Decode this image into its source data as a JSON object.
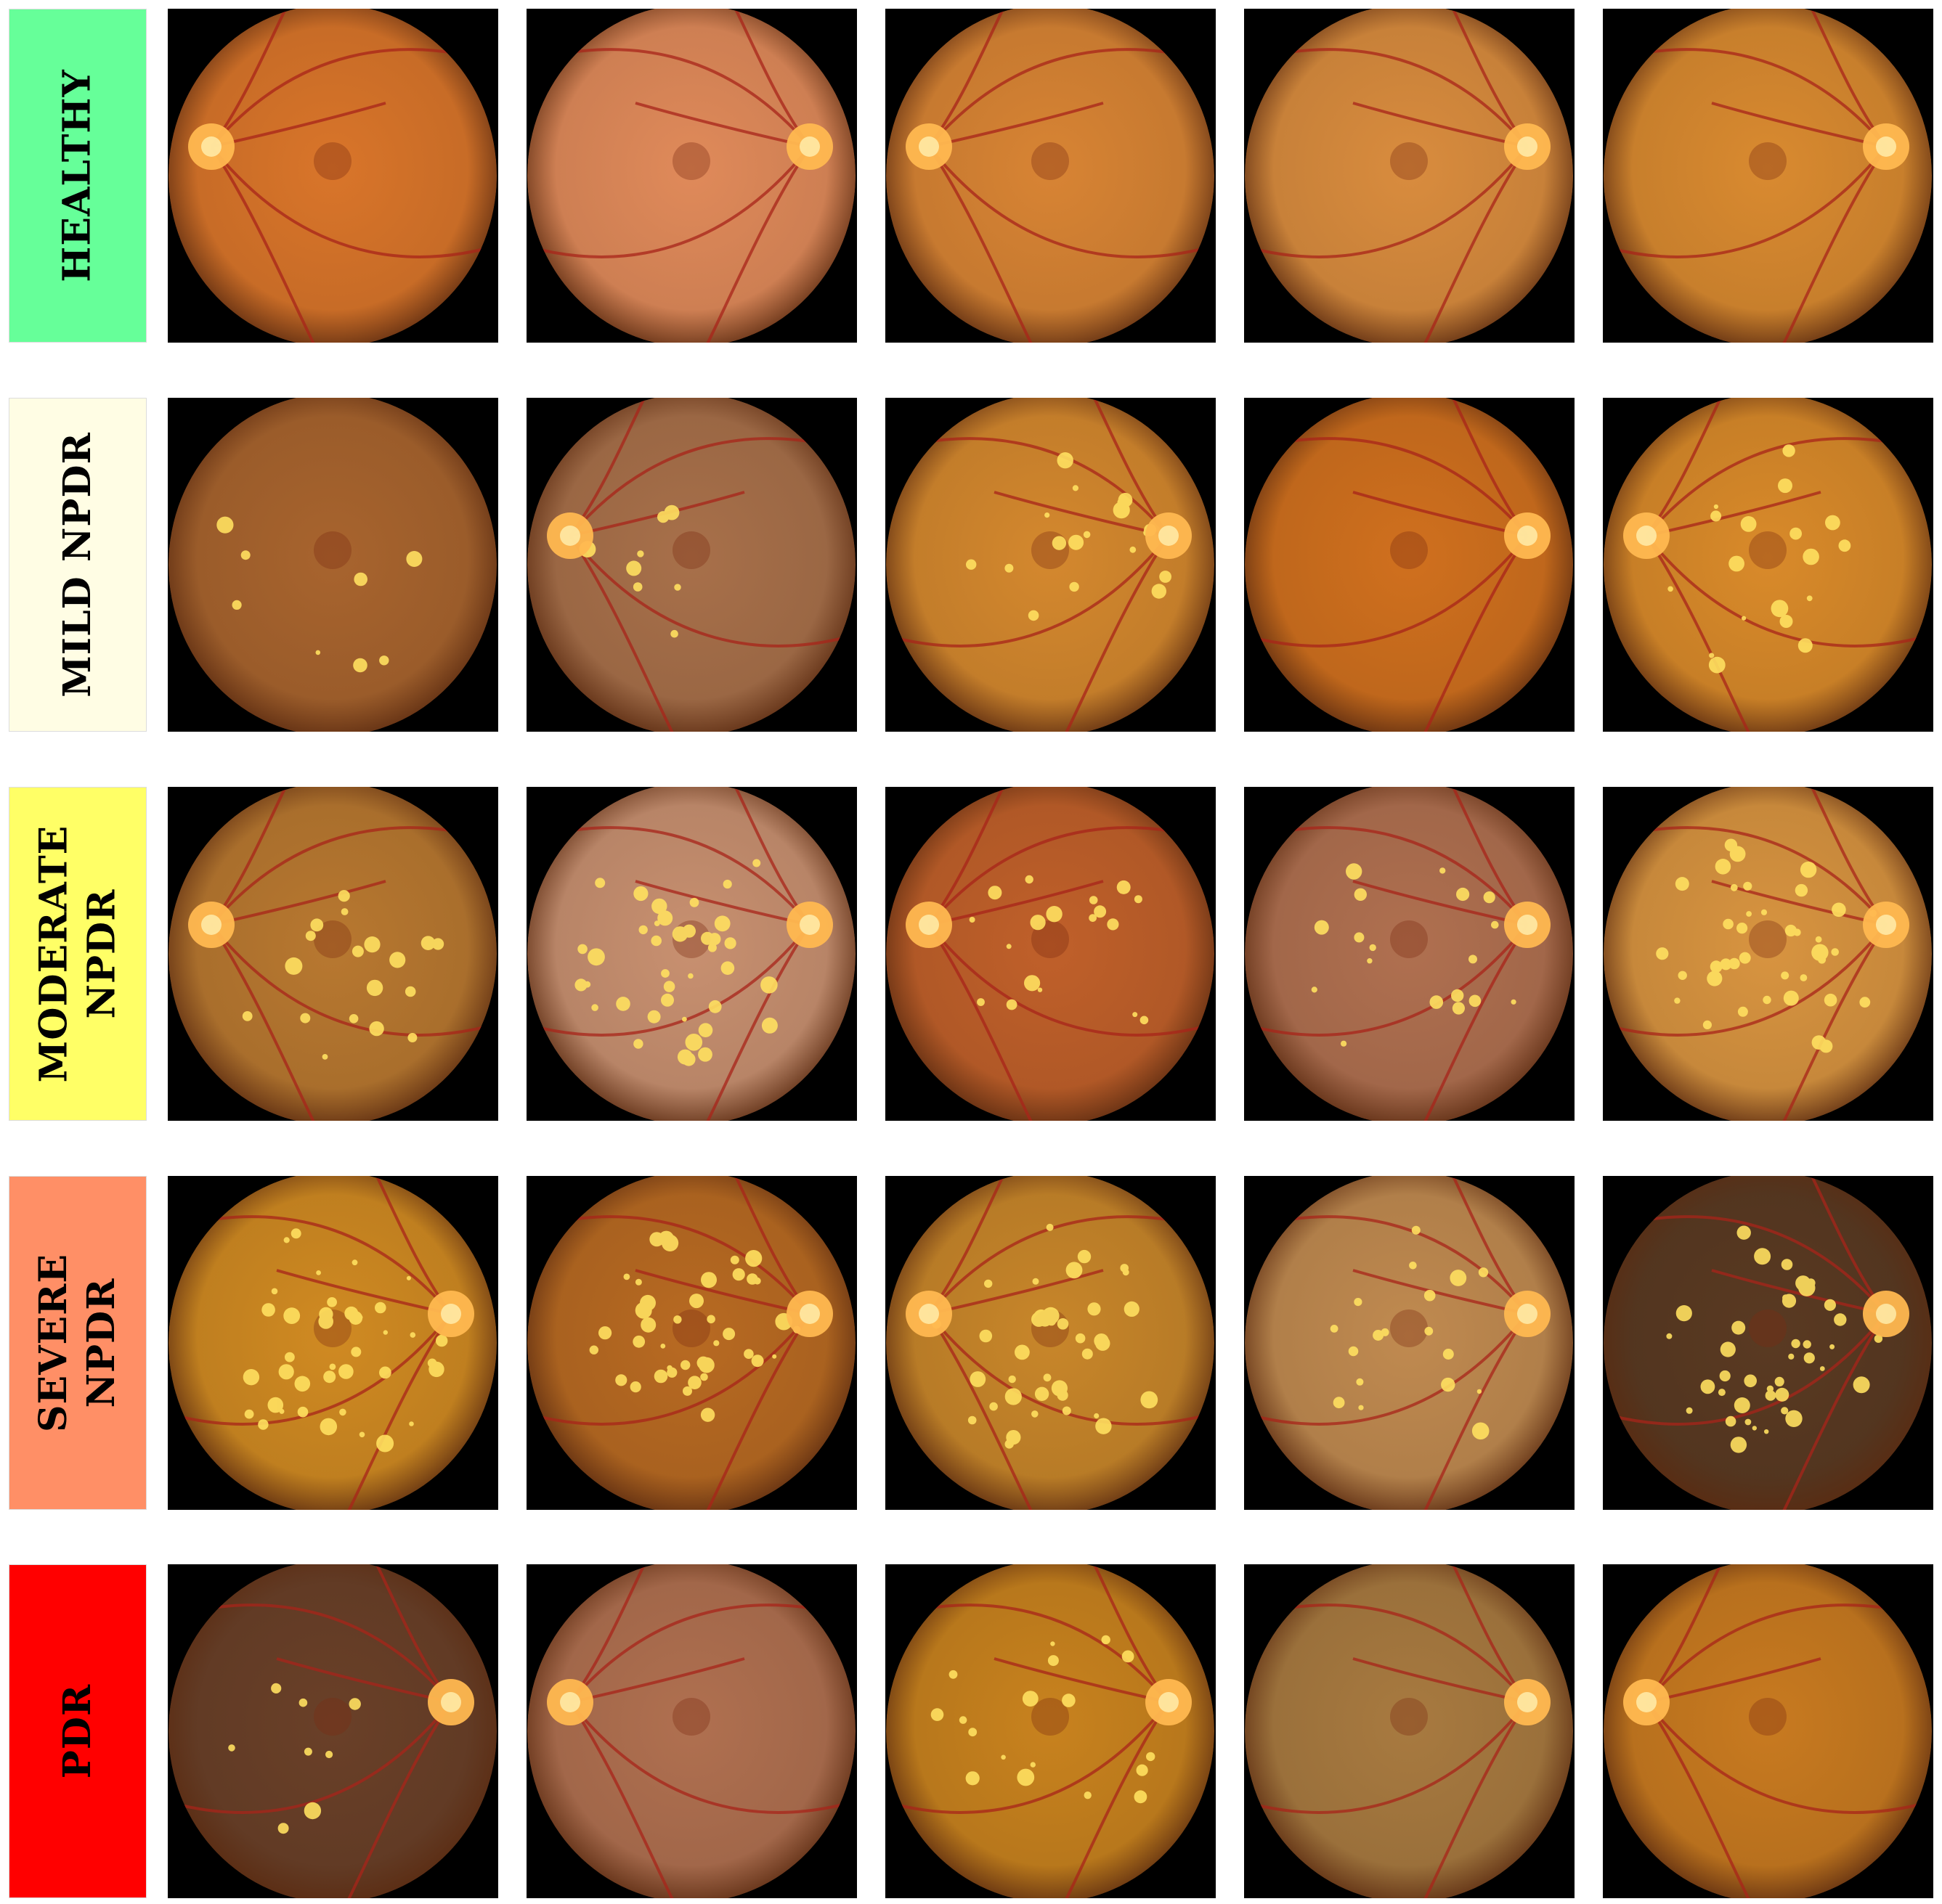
{
  "rows": [
    {
      "label": "HEALTHY",
      "label_color": "#66ff99",
      "images": [
        {
          "tone": "#d9752a",
          "disc": "left"
        },
        {
          "tone": "#e08a5a",
          "disc": "right"
        },
        {
          "tone": "#d88434",
          "disc": "left"
        },
        {
          "tone": "#d98c3e",
          "disc": "right"
        },
        {
          "tone": "#d98a30",
          "disc": "right"
        }
      ]
    },
    {
      "label": "MILD NPDR",
      "label_color": "#fffde4",
      "images": [
        {
          "tone": "#a8642e",
          "disc": "none",
          "lesions": "few"
        },
        {
          "tone": "#a8704a",
          "disc": "left",
          "lesions": "few"
        },
        {
          "tone": "#d4882e",
          "disc": "right",
          "lesions": "some"
        },
        {
          "tone": "#d0701e",
          "disc": "right",
          "lesions": "none"
        },
        {
          "tone": "#d98a2a",
          "disc": "left",
          "lesions": "some"
        }
      ]
    },
    {
      "label": "MODERATE\nNPDR",
      "label_color": "#ffff66",
      "images": [
        {
          "tone": "#b87830",
          "disc": "left",
          "lesions": "some"
        },
        {
          "tone": "#c89070",
          "disc": "right",
          "lesions": "many"
        },
        {
          "tone": "#c0602a",
          "disc": "left",
          "lesions": "some"
        },
        {
          "tone": "#b07050",
          "disc": "right",
          "lesions": "some"
        },
        {
          "tone": "#d89440",
          "disc": "right",
          "lesions": "many"
        }
      ]
    },
    {
      "label": "SEVERE\nNPDR",
      "label_color": "#ff8f66",
      "images": [
        {
          "tone": "#d08a22",
          "disc": "right",
          "lesions": "many"
        },
        {
          "tone": "#b86a22",
          "disc": "right",
          "lesions": "many"
        },
        {
          "tone": "#c8862a",
          "disc": "left",
          "lesions": "many"
        },
        {
          "tone": "#c08a50",
          "disc": "right",
          "lesions": "some"
        },
        {
          "tone": "#5a3a22",
          "disc": "right",
          "lesions": "many"
        }
      ]
    },
    {
      "label": "PDR",
      "label_color": "#ff0000",
      "images": [
        {
          "tone": "#6a4028",
          "disc": "right",
          "lesions": "few"
        },
        {
          "tone": "#b07050",
          "disc": "left",
          "lesions": "none"
        },
        {
          "tone": "#c8821e",
          "disc": "right",
          "lesions": "some"
        },
        {
          "tone": "#a87a40",
          "disc": "right",
          "lesions": "none"
        },
        {
          "tone": "#c87a20",
          "disc": "left",
          "lesions": "none"
        }
      ]
    }
  ]
}
